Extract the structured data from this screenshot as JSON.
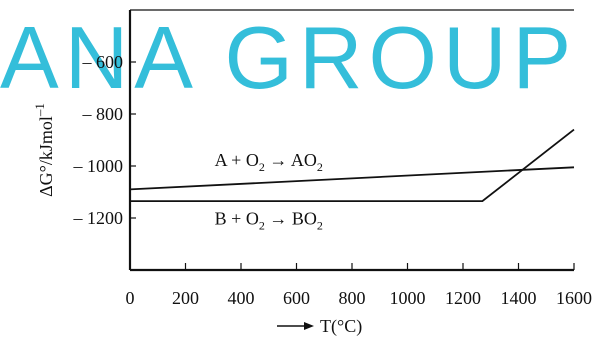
{
  "watermark": {
    "text": "ANA GROUP",
    "color": "#1fb7d6"
  },
  "chart_data": {
    "type": "line",
    "xlim": [
      0,
      1600
    ],
    "ylim": [
      -1400,
      -400
    ],
    "x_ticks": [
      0,
      200,
      400,
      600,
      800,
      1000,
      1200,
      1400,
      1600
    ],
    "x_tick_labels": [
      "0",
      "200",
      "400",
      "600",
      "800",
      "1000",
      "1200",
      "1400",
      "1600"
    ],
    "y_ticks": [
      -600,
      -800,
      -1000,
      -1200
    ],
    "y_tick_labels": [
      "– 600",
      "– 800",
      "– 1000",
      "– 1200"
    ],
    "xlabel": "T(°C)",
    "ylabel": "ΔG°/kJmol",
    "ylabel_superscript": "–1",
    "grid": false,
    "colors": {
      "line": "#111111",
      "axis": "#111111"
    },
    "series": [
      {
        "points": [
          [
            0,
            -1090
          ],
          [
            1600,
            -1005
          ]
        ]
      },
      {
        "points": [
          [
            0,
            -1135
          ],
          [
            1270,
            -1135
          ],
          [
            1600,
            -860
          ]
        ]
      }
    ],
    "annotations": [
      {
        "parts": [
          "A + O",
          "2",
          " → AO",
          "2"
        ],
        "x": 500,
        "y": -1000
      },
      {
        "parts": [
          "B + O",
          "2",
          " → BO",
          "2"
        ],
        "x": 500,
        "y": -1225
      }
    ]
  }
}
